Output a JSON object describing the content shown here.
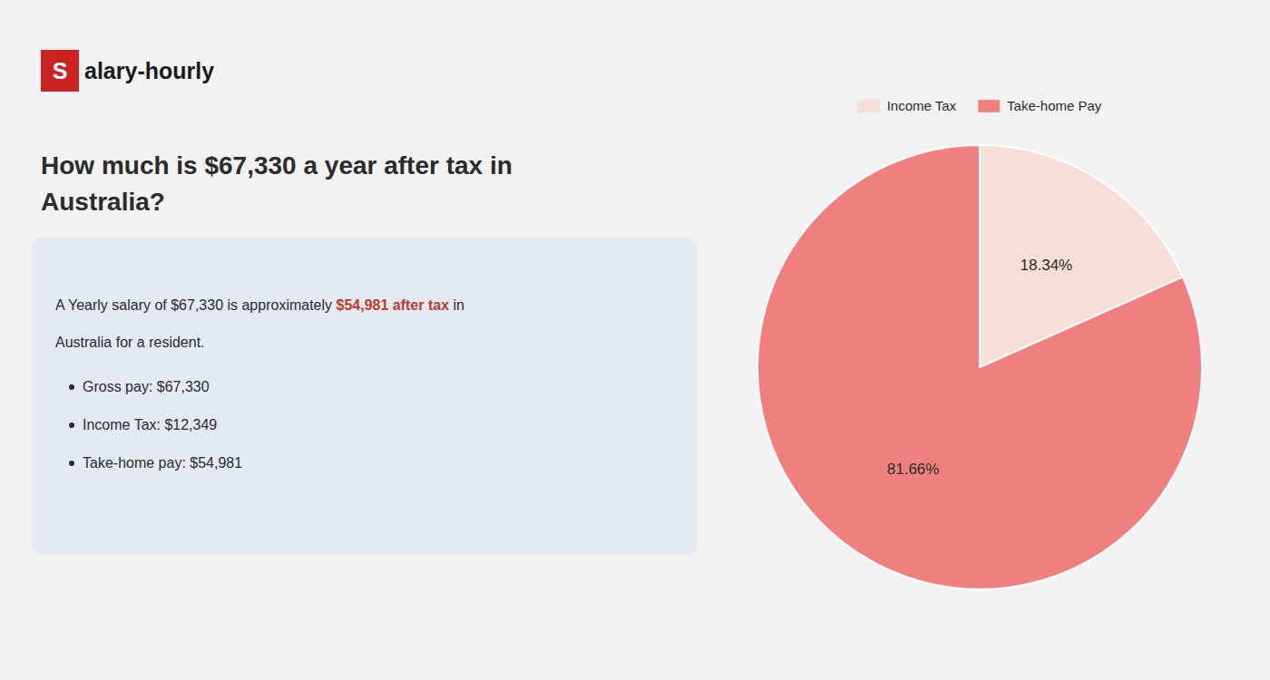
{
  "chart_data": {
    "type": "pie",
    "title": "How much is $67,330 a year after tax in Australia?",
    "categories": [
      "Income Tax",
      "Take-home Pay"
    ],
    "values": [
      18.34,
      81.66
    ],
    "value_labels": [
      "18.34%",
      "81.66%"
    ],
    "colors": [
      "#f7dfd8",
      "#f08080"
    ],
    "data_labels": true,
    "legend": "top",
    "annotations": [
      {
        "text": "S",
        "color": "#cc2222"
      },
      {
        "text": "alary-hourly"
      },
      {
        "text": "A Yearly salary of $67,330 is approximately "
      },
      {
        "text": "$54,981 after tax",
        "color": "#c0392b"
      },
      {
        "text": " in"
      },
      {
        "text": "Australia for a resident."
      },
      {
        "text": "Gross pay: $67,330"
      },
      {
        "text": "Income Tax: $12,349"
      },
      {
        "text": "Take-home pay: $54,981"
      }
    ]
  }
}
